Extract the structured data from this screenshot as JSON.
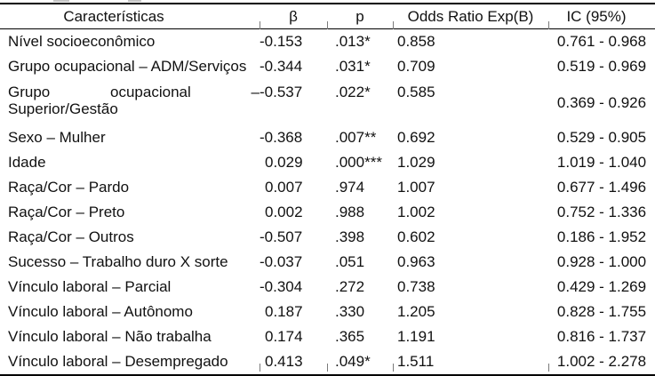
{
  "table": {
    "columns": [
      {
        "key": "label",
        "label": "Características"
      },
      {
        "key": "beta",
        "label": "β"
      },
      {
        "key": "p",
        "label": "p"
      },
      {
        "key": "or",
        "label": "Odds Ratio Exp(B)"
      },
      {
        "key": "ic",
        "label": "IC (95%)"
      }
    ],
    "rows": [
      {
        "label": "Nível socioeconômico",
        "beta": "-0.153",
        "p": ".013*",
        "or": "0.858",
        "ic": "0.761 - 0.968"
      },
      {
        "label": "Grupo ocupacional – ADM/Serviços",
        "beta": "-0.344",
        "p": ".031*",
        "or": "0.709",
        "ic": "0.519 - 0.969"
      },
      {
        "label": "Grupo ocupacional – Superior/Gestão",
        "label_lines": [
          [
            "Grupo",
            "ocupacional",
            "–"
          ],
          "Superior/Gestão"
        ],
        "beta": "-0.537",
        "p": ".022*",
        "or": "0.585",
        "ic": "0.369 - 0.926"
      },
      {
        "label": "Sexo – Mulher",
        "beta": "-0.368",
        "p": ".007**",
        "or": "0.692",
        "ic": "0.529 - 0.905"
      },
      {
        "label": "Idade",
        "beta": "0.029",
        "p": ".000***",
        "or": "1.029",
        "ic": "1.019 - 1.040"
      },
      {
        "label": "Raça/Cor – Pardo",
        "beta": "0.007",
        "p": ".974",
        "or": "1.007",
        "ic": "0.677 - 1.496"
      },
      {
        "label": "Raça/Cor – Preto",
        "beta": "0.002",
        "p": ".988",
        "or": "1.002",
        "ic": "0.752 - 1.336"
      },
      {
        "label": "Raça/Cor – Outros",
        "beta": "-0.507",
        "p": ".398",
        "or": "0.602",
        "ic": "0.186 - 1.952"
      },
      {
        "label": "Sucesso – Trabalho duro X sorte",
        "beta": "-0.037",
        "p": ".051",
        "or": "0.963",
        "ic": "0.928 - 1.000"
      },
      {
        "label": "Vínculo laboral – Parcial",
        "beta": "-0.304",
        "p": ".272",
        "or": "0.738",
        "ic": "0.429 - 1.269"
      },
      {
        "label": "Vínculo laboral – Autônomo",
        "beta": "0.187",
        "p": ".330",
        "or": "1.205",
        "ic": "0.828 - 1.755"
      },
      {
        "label": "Vínculo laboral – Não trabalha",
        "beta": "0.174",
        "p": ".365",
        "or": "1.191",
        "ic": "0.816 - 1.737"
      },
      {
        "label": "Vínculo laboral – Desempregado",
        "beta": "0.413",
        "p": ".049*",
        "or": "1.511",
        "ic": "1.002 - 2.278"
      }
    ]
  },
  "colors": {
    "text": "#111111",
    "rule": "#000000",
    "tick": "#7a7a7a"
  }
}
